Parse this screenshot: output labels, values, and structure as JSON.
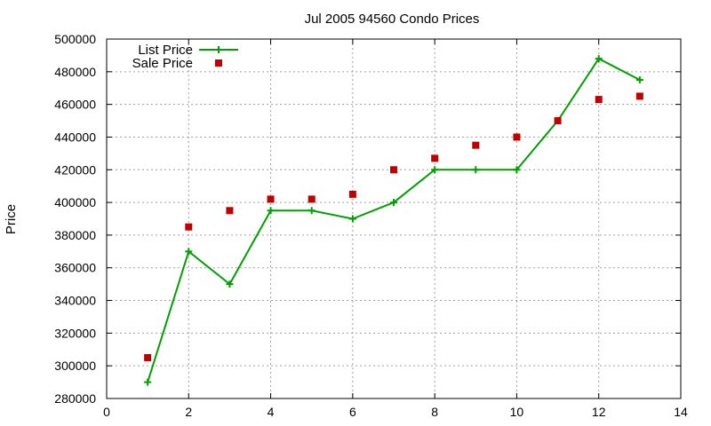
{
  "chart_data": {
    "type": "line",
    "title": "Jul 2005 94560 Condo Prices",
    "xlabel": "",
    "ylabel": "Price",
    "xlim": [
      0,
      14
    ],
    "ylim": [
      280000,
      500000
    ],
    "x_ticks": [
      "0",
      "2",
      "4",
      "6",
      "8",
      "10",
      "12",
      "14"
    ],
    "y_ticks": [
      "280000",
      "300000",
      "320000",
      "340000",
      "360000",
      "380000",
      "400000",
      "420000",
      "440000",
      "460000",
      "480000",
      "500000"
    ],
    "grid": true,
    "legend_position": "top-left",
    "series": [
      {
        "name": "List Price",
        "style": "line+cross",
        "color": "#00a000",
        "x": [
          1,
          2,
          3,
          4,
          5,
          6,
          7,
          8,
          9,
          10,
          11,
          12,
          13
        ],
        "y": [
          290000,
          370000,
          350000,
          395000,
          395000,
          390000,
          400000,
          420000,
          420000,
          420000,
          450000,
          488000,
          475000
        ]
      },
      {
        "name": "Sale Price",
        "style": "square-points",
        "color": "#c00000",
        "x": [
          1,
          2,
          3,
          4,
          5,
          6,
          7,
          8,
          9,
          10,
          11,
          12,
          13
        ],
        "y": [
          305000,
          385000,
          395000,
          402000,
          402000,
          405000,
          420000,
          427000,
          435000,
          440000,
          450000,
          463000,
          465000
        ]
      }
    ]
  }
}
